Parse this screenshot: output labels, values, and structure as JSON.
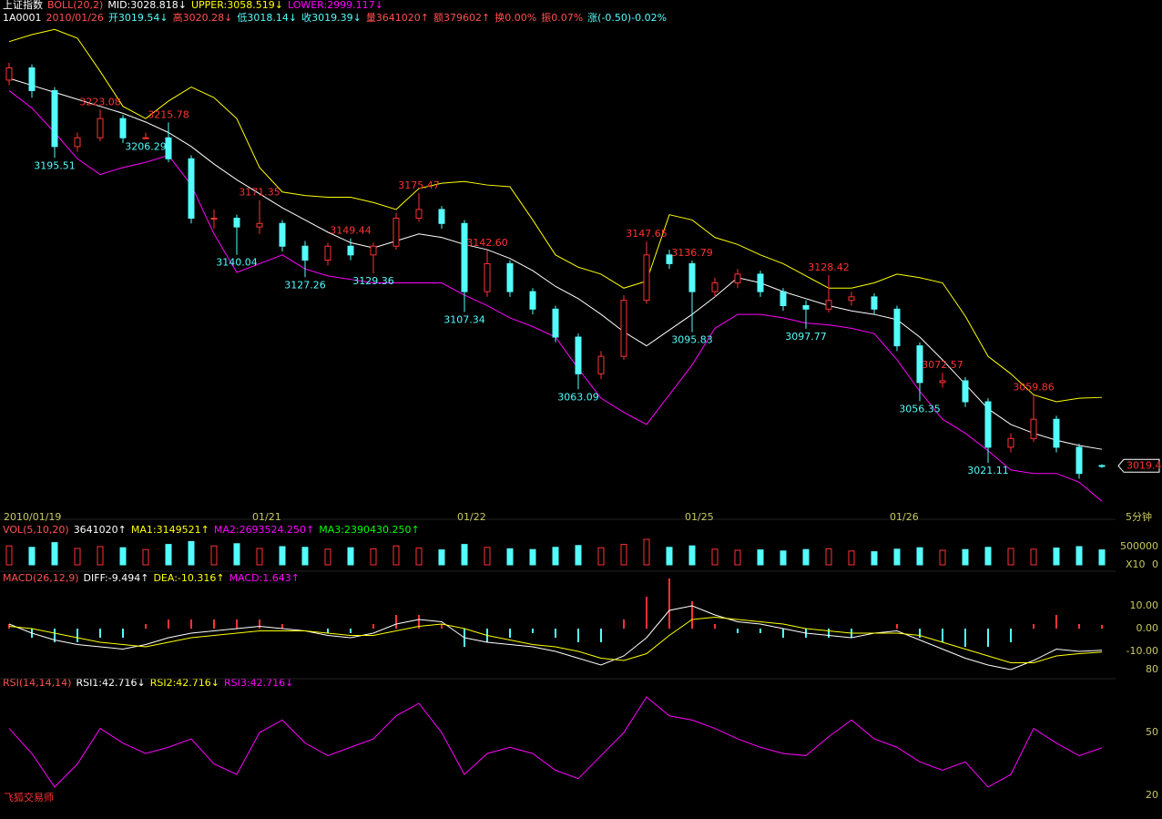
{
  "chart_data": [
    {
      "type": "candlestick",
      "header": [
        [
          {
            "text": "上证指数",
            "color": "#ffffff"
          },
          {
            "text": "BOLL(20,2)",
            "color": "#ff5050"
          },
          {
            "text": "MID:3028.818↓",
            "color": "#ffffff"
          },
          {
            "text": "UPPER:3058.519↓",
            "color": "#ffff00"
          },
          {
            "text": "LOWER:2999.117↓",
            "color": "#ff00ff"
          }
        ],
        [
          {
            "text": "1A0001",
            "color": "#ffffff"
          },
          {
            "text": "2010/01/26",
            "color": "#ff5050"
          },
          {
            "text": "开3019.54↓",
            "color": "#54fcfc"
          },
          {
            "text": "高3020.28↓",
            "color": "#ff5050"
          },
          {
            "text": "低3018.14↓",
            "color": "#54fcfc"
          },
          {
            "text": "收3019.39↓",
            "color": "#54fcfc"
          },
          {
            "text": "量3641020↑",
            "color": "#ff5050"
          },
          {
            "text": "额379602↑",
            "color": "#ff5050"
          },
          {
            "text": "换0.00%",
            "color": "#ff5050"
          },
          {
            "text": "振0.07%",
            "color": "#ff5050"
          },
          {
            "text": "涨(-0.50)-0.02%",
            "color": "#54fcfc"
          }
        ]
      ],
      "categories": [
        "2010/01/19",
        null,
        null,
        null,
        null,
        null,
        null,
        null,
        null,
        null,
        null,
        "01/21",
        null,
        null,
        null,
        null,
        null,
        null,
        null,
        null,
        "01/22",
        null,
        null,
        null,
        null,
        null,
        null,
        null,
        null,
        null,
        "01/25",
        null,
        null,
        null,
        null,
        null,
        null,
        null,
        null,
        "01/26",
        null,
        null,
        null,
        null,
        null,
        null,
        null,
        null,
        null
      ],
      "period": "5分钟",
      "open": [
        3240,
        3247,
        3234,
        3202,
        3207,
        3218,
        3207,
        3207,
        3195,
        3161,
        3161,
        3156,
        3158,
        3145,
        3137,
        3145,
        3140,
        3145,
        3161,
        3166,
        3158,
        3119,
        3135,
        3119,
        3109,
        3093,
        3072,
        3082,
        3114,
        3140,
        3135,
        3119,
        3124,
        3129,
        3119,
        3111,
        3109,
        3114,
        3116,
        3109,
        3088,
        3067,
        3068,
        3056,
        3030,
        3035,
        3046,
        3030,
        3019.54
      ],
      "high": [
        3250,
        3249,
        3236,
        3210,
        3223.08,
        3220,
        3210,
        3215.78,
        3197,
        3166,
        3163,
        3171.35,
        3160,
        3148,
        3147,
        3149.44,
        3147,
        3164,
        3175.47,
        3168,
        3160,
        3142.6,
        3137,
        3121,
        3111,
        3095,
        3085,
        3117,
        3147.65,
        3143,
        3136.79,
        3127,
        3132,
        3131,
        3121,
        3114,
        3128.42,
        3119,
        3118,
        3111,
        3090,
        3072.57,
        3070,
        3058,
        3038,
        3059.86,
        3048,
        3032,
        3020.28
      ],
      "low": [
        3237,
        3230,
        3195.51,
        3199,
        3205,
        3204,
        3206.29,
        3193,
        3158,
        3155,
        3140.04,
        3152,
        3142,
        3127.26,
        3134,
        3137,
        3129.36,
        3143,
        3159,
        3155,
        3107.34,
        3116,
        3116,
        3106,
        3090,
        3063.09,
        3069,
        3080,
        3112,
        3132,
        3095.83,
        3116,
        3121,
        3116,
        3108,
        3097.77,
        3107,
        3111,
        3106,
        3085,
        3056.35,
        3064,
        3053,
        3021.11,
        3027,
        3033,
        3027,
        3012,
        3018.14
      ],
      "close": [
        3247,
        3234,
        3202,
        3207,
        3218,
        3207,
        3207,
        3195,
        3161,
        3161,
        3156,
        3158,
        3145,
        3137,
        3145,
        3140,
        3145,
        3161,
        3166,
        3158,
        3119,
        3135,
        3119,
        3109,
        3093,
        3072,
        3082,
        3114,
        3140,
        3135,
        3119,
        3124,
        3129,
        3119,
        3111,
        3109,
        3114,
        3116,
        3109,
        3088,
        3067,
        3068,
        3056,
        3030,
        3035,
        3046,
        3030,
        3015,
        3019.39
      ],
      "up_color": "#ff3232",
      "down_color": "#54fcfc",
      "series": [
        {
          "color": "#ffffff",
          "values": [
            3241,
            3237,
            3233,
            3229,
            3225,
            3221,
            3216,
            3210,
            3202,
            3192,
            3183,
            3175,
            3167,
            3160,
            3153,
            3147,
            3144,
            3148,
            3152,
            3150,
            3146,
            3143,
            3138,
            3131,
            3122,
            3115,
            3106,
            3096,
            3088,
            3097,
            3106,
            3116,
            3127,
            3124,
            3119,
            3115,
            3111,
            3108,
            3106,
            3103,
            3093,
            3080,
            3066,
            3052,
            3043,
            3038,
            3034,
            3031,
            3028.818
          ]
        },
        {
          "color": "#ffff00",
          "values": [
            3262,
            3266,
            3269,
            3264,
            3245,
            3225,
            3218,
            3228,
            3236,
            3230,
            3218,
            3190,
            3176,
            3174,
            3173,
            3173,
            3170,
            3166,
            3178,
            3181,
            3182,
            3180,
            3179,
            3160,
            3140,
            3133,
            3129,
            3121,
            3125,
            3163,
            3160,
            3150,
            3146,
            3140,
            3135,
            3128,
            3121,
            3121,
            3124,
            3129,
            3127,
            3124,
            3105,
            3082,
            3072,
            3060,
            3056,
            3058,
            3058.519
          ]
        },
        {
          "color": "#ff00ff",
          "values": [
            3234,
            3224,
            3210,
            3195,
            3186,
            3190,
            3193,
            3197,
            3180,
            3152,
            3130,
            3135,
            3140,
            3132,
            3128,
            3126,
            3124,
            3124,
            3124,
            3124,
            3117,
            3111,
            3104,
            3099,
            3093,
            3075,
            3058,
            3050,
            3043,
            3060,
            3077,
            3098,
            3106,
            3106,
            3104,
            3101,
            3100,
            3098,
            3095,
            3080,
            3062,
            3046,
            3038,
            3028,
            3017,
            3015,
            3015,
            3010,
            2999.117
          ]
        }
      ],
      "annotations": [
        {
          "label": "3223.08",
          "candle": 4,
          "kind": "high"
        },
        {
          "label": "3206.29",
          "candle": 6,
          "kind": "low"
        },
        {
          "label": "3215.78",
          "candle": 7,
          "kind": "high"
        },
        {
          "label": "3195.51",
          "candle": 2,
          "kind": "low"
        },
        {
          "label": "3171.35",
          "candle": 11,
          "kind": "high"
        },
        {
          "label": "3140.04",
          "candle": 10,
          "kind": "low"
        },
        {
          "label": "3149.44",
          "candle": 15,
          "kind": "high"
        },
        {
          "label": "3127.26",
          "candle": 13,
          "kind": "low"
        },
        {
          "label": "3129.36",
          "candle": 16,
          "kind": "low"
        },
        {
          "label": "3175.47",
          "candle": 18,
          "kind": "high"
        },
        {
          "label": "3142.60",
          "candle": 21,
          "kind": "high"
        },
        {
          "label": "3107.34",
          "candle": 20,
          "kind": "low"
        },
        {
          "label": "3063.09",
          "candle": 25,
          "kind": "low"
        },
        {
          "label": "3147.65",
          "candle": 28,
          "kind": "high"
        },
        {
          "label": "3136.79",
          "candle": 30,
          "kind": "high"
        },
        {
          "label": "3095.83",
          "candle": 30,
          "kind": "low"
        },
        {
          "label": "3097.77",
          "candle": 35,
          "kind": "low"
        },
        {
          "label": "3128.42",
          "candle": 36,
          "kind": "high"
        },
        {
          "label": "3072.57",
          "candle": 41,
          "kind": "high"
        },
        {
          "label": "3056.35",
          "candle": 40,
          "kind": "low"
        },
        {
          "label": "3059.86",
          "candle": 45,
          "kind": "high"
        },
        {
          "label": "3021.11",
          "candle": 43,
          "kind": "low"
        }
      ],
      "last_label": "3019.4",
      "ylim": [
        2994,
        3278
      ]
    },
    {
      "type": "bar",
      "header": [
        [
          {
            "text": "VOL(5,10,20)",
            "color": "#ff5050"
          },
          {
            "text": "3641020↑",
            "color": "#ffffff"
          },
          {
            "text": "MA1:3149521↑",
            "color": "#ffff00"
          },
          {
            "text": "MA2:2693524.250↑",
            "color": "#ff00ff"
          },
          {
            "text": "MA3:2390430.250↑",
            "color": "#00ff00"
          }
        ]
      ],
      "values": [
        520000,
        480000,
        610000,
        450000,
        500000,
        470000,
        420000,
        560000,
        640000,
        520000,
        580000,
        450000,
        500000,
        480000,
        430000,
        470000,
        440000,
        520000,
        460000,
        410000,
        560000,
        480000,
        440000,
        420000,
        480000,
        530000,
        470000,
        560000,
        700000,
        480000,
        520000,
        430000,
        400000,
        410000,
        380000,
        420000,
        440000,
        380000,
        360000,
        430000,
        470000,
        400000,
        420000,
        480000,
        450000,
        430000,
        460000,
        500000,
        410000
      ],
      "unit": "X10",
      "ylim": [
        0,
        1000000
      ],
      "yticks": [
        0,
        500000
      ]
    },
    {
      "type": "macd",
      "header": [
        [
          {
            "text": "MACD(26,12,9)",
            "color": "#ff5050"
          },
          {
            "text": "DIFF:-9.494↑",
            "color": "#ffffff"
          },
          {
            "text": "DEA:-10.316↑",
            "color": "#ffff00"
          },
          {
            "text": "MACD:1.643↑",
            "color": "#ff00ff"
          }
        ]
      ],
      "histogram": [
        2,
        -4,
        -6,
        -6,
        -4,
        -4,
        2,
        4,
        4,
        4,
        4,
        4,
        2,
        0,
        -2,
        -2,
        2,
        6,
        6,
        2,
        -8,
        -6,
        -4,
        -2,
        -4,
        -6,
        -6,
        4,
        14,
        22,
        12,
        2,
        -2,
        -2,
        -4,
        -4,
        -4,
        -4,
        0,
        2,
        -4,
        -6,
        -8,
        -8,
        -6,
        2,
        6,
        2,
        1.643
      ],
      "series": [
        {
          "color": "#ffffff",
          "values": [
            2,
            -2,
            -5,
            -7,
            -8,
            -9,
            -7,
            -4,
            -2,
            -1,
            0,
            1,
            0,
            -1,
            -3,
            -4,
            -2,
            2,
            4,
            3,
            -4,
            -6,
            -7,
            -8,
            -10,
            -13,
            -16,
            -12,
            -4,
            8,
            10,
            6,
            3,
            2,
            0,
            -2,
            -3,
            -4,
            -2,
            -1,
            -5,
            -9,
            -13,
            -16,
            -18,
            -14,
            -9,
            -10,
            -9.494
          ]
        },
        {
          "color": "#ffff00",
          "values": [
            1,
            0,
            -2,
            -4,
            -6,
            -7,
            -8,
            -6,
            -4,
            -3,
            -2,
            -1,
            -1,
            -1,
            -2,
            -3,
            -3,
            -1,
            1,
            2,
            0,
            -3,
            -5,
            -7,
            -8,
            -10,
            -13,
            -14,
            -11,
            -3,
            4,
            5,
            4,
            3,
            2,
            0,
            -1,
            -2,
            -2,
            -2,
            -3,
            -6,
            -9,
            -12,
            -15,
            -15,
            -12,
            -11,
            -10.316
          ]
        }
      ],
      "up_color": "#ff3232",
      "down_color": "#54fcfc",
      "ylim": [
        -20,
        20
      ],
      "yticks": [
        {
          "value": -10,
          "label": "-10.00"
        },
        {
          "value": 0,
          "label": "0.00"
        },
        {
          "value": 10,
          "label": "10.00"
        }
      ]
    },
    {
      "type": "line",
      "header": [
        [
          {
            "text": "RSI(14,14,14)",
            "color": "#ff5050"
          },
          {
            "text": "RSI1:42.716↓",
            "color": "#ffffff"
          },
          {
            "text": "RSI2:42.716↓",
            "color": "#ffff00"
          },
          {
            "text": "RSI3:42.716↓",
            "color": "#ff00ff"
          }
        ]
      ],
      "series": [
        {
          "color": "#ff00ff",
          "values": [
            52,
            40,
            24,
            35,
            52,
            45,
            40,
            43,
            47,
            35,
            30,
            50,
            56,
            45,
            39,
            43,
            47,
            58,
            64,
            50,
            30,
            40,
            43,
            40,
            32,
            28,
            39,
            50,
            67,
            58,
            56,
            52,
            47,
            43,
            40,
            39,
            48,
            56,
            47,
            43,
            36,
            32,
            36,
            24,
            30,
            52,
            45,
            39,
            42.716
          ]
        }
      ],
      "ylim": [
        17,
        84
      ],
      "yticks": [
        20,
        50,
        80
      ]
    }
  ],
  "footer": "飞狐交易师"
}
